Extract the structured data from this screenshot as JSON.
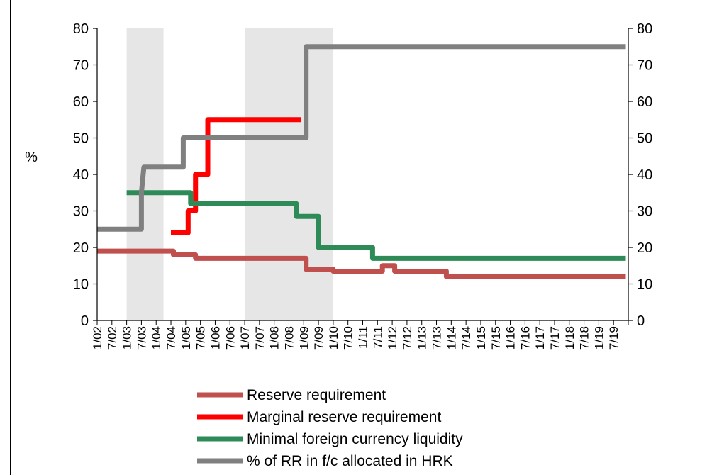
{
  "chart_data": {
    "type": "line",
    "title": "",
    "ylabel": "%",
    "y_left_ticks": [
      "0",
      "10",
      "20",
      "30",
      "40",
      "50",
      "60",
      "70",
      "80"
    ],
    "y_right_ticks": [
      "0",
      "10",
      "20",
      "30",
      "40",
      "50",
      "60",
      "70",
      "80"
    ],
    "ylim": [
      0,
      80
    ],
    "grid": false,
    "x_axis_range": [
      "2002-01",
      "2019-12"
    ],
    "x_tick_labels": [
      "1/02",
      "7/02",
      "1/03",
      "7/03",
      "1/04",
      "7/04",
      "1/05",
      "7/05",
      "1/06",
      "7/06",
      "1/07",
      "7/07",
      "1/08",
      "7/08",
      "1/09",
      "7/09",
      "1/10",
      "7/10",
      "1/11",
      "7/11",
      "1/12",
      "7/12",
      "1/13",
      "7/13",
      "1/14",
      "7/14",
      "1/15",
      "7/15",
      "1/16",
      "7/16",
      "1/17",
      "7/17",
      "1/18",
      "7/18",
      "1/19",
      "7/19"
    ],
    "shaded_periods": [
      {
        "from": "2003-01",
        "to": "2004-04"
      },
      {
        "from": "2007-01",
        "to": "2010-01"
      }
    ],
    "series": [
      {
        "name": "Reserve requirement",
        "color": "#c0504d",
        "points": [
          [
            "2002-01",
            19
          ],
          [
            "2004-08",
            19
          ],
          [
            "2004-08",
            18
          ],
          [
            "2005-05",
            18
          ],
          [
            "2005-05",
            17
          ],
          [
            "2009-02",
            17
          ],
          [
            "2009-02",
            14
          ],
          [
            "2010-01",
            14
          ],
          [
            "2010-01",
            13.5
          ],
          [
            "2011-09",
            13.5
          ],
          [
            "2011-09",
            15
          ],
          [
            "2012-02",
            15
          ],
          [
            "2012-02",
            13.5
          ],
          [
            "2013-11",
            13.5
          ],
          [
            "2013-11",
            12
          ],
          [
            "2019-12",
            12
          ]
        ]
      },
      {
        "name": "Marginal reserve requirement",
        "color": "#ff0000",
        "points": [
          [
            "2004-07",
            24
          ],
          [
            "2005-02",
            24
          ],
          [
            "2005-02",
            30
          ],
          [
            "2005-05",
            30
          ],
          [
            "2005-05",
            40
          ],
          [
            "2005-10",
            40
          ],
          [
            "2005-10",
            55
          ],
          [
            "2008-12",
            55
          ]
        ]
      },
      {
        "name": "Minimal foreign currency liquidity",
        "color": "#2e8b57",
        "points": [
          [
            "2003-01",
            35
          ],
          [
            "2005-03",
            35
          ],
          [
            "2005-03",
            32
          ],
          [
            "2008-10",
            32
          ],
          [
            "2008-10",
            28.5
          ],
          [
            "2009-07",
            28.5
          ],
          [
            "2009-07",
            20
          ],
          [
            "2011-05",
            20
          ],
          [
            "2011-05",
            17
          ],
          [
            "2019-12",
            17
          ]
        ]
      },
      {
        "name": "% of RR in f/c allocated in HRK",
        "color": "#808080",
        "points": [
          [
            "2002-01",
            25
          ],
          [
            "2003-07",
            25
          ],
          [
            "2003-07",
            35
          ],
          [
            "2003-08",
            42
          ],
          [
            "2004-12",
            42
          ],
          [
            "2004-12",
            50
          ],
          [
            "2009-02",
            50
          ],
          [
            "2009-02",
            75
          ],
          [
            "2019-12",
            75
          ]
        ]
      }
    ]
  }
}
